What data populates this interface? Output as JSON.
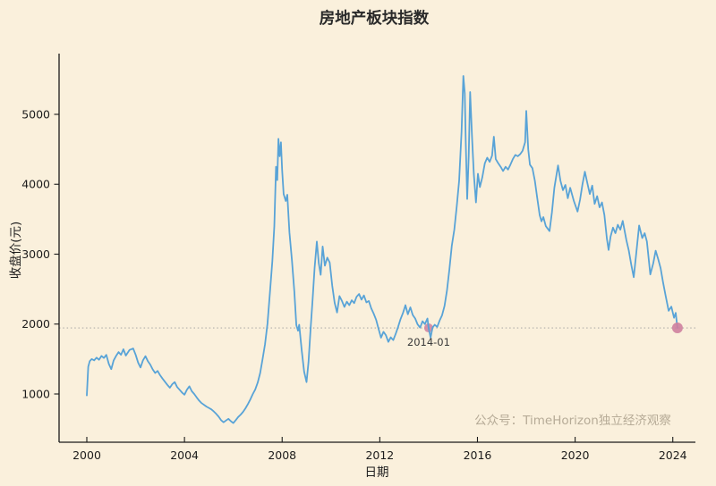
{
  "title": "房地产板块指数",
  "watermark": "公众号：TimeHorizon独立经济观察",
  "colors": {
    "background": "#faf0dc",
    "line": "#58a3d7",
    "marker": "#ce7f9f",
    "reference_line": "#9a9a9a",
    "spine": "#1a1a1a",
    "tick_text": "#1c1c1c",
    "watermark_text": "#b6ab97"
  },
  "chart_data": {
    "type": "line",
    "title": "房地产板块指数",
    "xlabel": "日期",
    "ylabel": "收盘价(元)",
    "x_ticks": [
      2000,
      2004,
      2008,
      2012,
      2016,
      2020,
      2024
    ],
    "y_ticks": [
      1000,
      2000,
      3000,
      4000,
      5000
    ],
    "xlim": [
      1998.9,
      2024.9
    ],
    "ylim": [
      310,
      5870
    ],
    "grid": false,
    "legend": null,
    "reference_line": {
      "y": 1945,
      "style": "dotted"
    },
    "annotations": [
      {
        "x": 2014.0,
        "y": 1945,
        "label": "2014-01",
        "dx": 0,
        "dy": 20
      }
    ],
    "markers": [
      {
        "x": 2014.0,
        "y": 1945,
        "r": 5,
        "layer": "below",
        "name": "marker-2014-01"
      },
      {
        "x": 2024.19,
        "y": 1945,
        "r": 6,
        "layer": "above",
        "name": "marker-latest"
      }
    ],
    "series": [
      {
        "name": "收盘价",
        "points": [
          [
            2000.0,
            980
          ],
          [
            2000.06,
            1390
          ],
          [
            2000.12,
            1470
          ],
          [
            2000.2,
            1500
          ],
          [
            2000.3,
            1480
          ],
          [
            2000.4,
            1520
          ],
          [
            2000.5,
            1490
          ],
          [
            2000.6,
            1545
          ],
          [
            2000.7,
            1515
          ],
          [
            2000.8,
            1560
          ],
          [
            2000.9,
            1430
          ],
          [
            2001.0,
            1355
          ],
          [
            2001.1,
            1480
          ],
          [
            2001.2,
            1545
          ],
          [
            2001.3,
            1600
          ],
          [
            2001.4,
            1560
          ],
          [
            2001.5,
            1640
          ],
          [
            2001.6,
            1550
          ],
          [
            2001.75,
            1630
          ],
          [
            2001.9,
            1650
          ],
          [
            2002.0,
            1560
          ],
          [
            2002.1,
            1450
          ],
          [
            2002.2,
            1380
          ],
          [
            2002.3,
            1480
          ],
          [
            2002.4,
            1540
          ],
          [
            2002.5,
            1470
          ],
          [
            2002.6,
            1420
          ],
          [
            2002.7,
            1350
          ],
          [
            2002.8,
            1300
          ],
          [
            2002.9,
            1330
          ],
          [
            2003.0,
            1270
          ],
          [
            2003.1,
            1220
          ],
          [
            2003.2,
            1175
          ],
          [
            2003.3,
            1130
          ],
          [
            2003.4,
            1090
          ],
          [
            2003.5,
            1140
          ],
          [
            2003.6,
            1170
          ],
          [
            2003.7,
            1100
          ],
          [
            2003.8,
            1060
          ],
          [
            2003.9,
            1020
          ],
          [
            2004.0,
            990
          ],
          [
            2004.1,
            1060
          ],
          [
            2004.2,
            1110
          ],
          [
            2004.3,
            1040
          ],
          [
            2004.4,
            1000
          ],
          [
            2004.5,
            950
          ],
          [
            2004.6,
            905
          ],
          [
            2004.7,
            870
          ],
          [
            2004.8,
            845
          ],
          [
            2004.9,
            820
          ],
          [
            2005.0,
            800
          ],
          [
            2005.1,
            780
          ],
          [
            2005.2,
            750
          ],
          [
            2005.3,
            715
          ],
          [
            2005.4,
            675
          ],
          [
            2005.5,
            625
          ],
          [
            2005.6,
            595
          ],
          [
            2005.7,
            620
          ],
          [
            2005.8,
            645
          ],
          [
            2005.9,
            610
          ],
          [
            2006.0,
            585
          ],
          [
            2006.1,
            625
          ],
          [
            2006.2,
            670
          ],
          [
            2006.3,
            705
          ],
          [
            2006.4,
            745
          ],
          [
            2006.5,
            795
          ],
          [
            2006.6,
            855
          ],
          [
            2006.7,
            925
          ],
          [
            2006.8,
            1000
          ],
          [
            2006.9,
            1065
          ],
          [
            2007.0,
            1165
          ],
          [
            2007.1,
            1300
          ],
          [
            2007.2,
            1500
          ],
          [
            2007.3,
            1710
          ],
          [
            2007.4,
            2010
          ],
          [
            2007.5,
            2450
          ],
          [
            2007.6,
            2900
          ],
          [
            2007.68,
            3400
          ],
          [
            2007.75,
            4250
          ],
          [
            2007.8,
            4060
          ],
          [
            2007.85,
            4650
          ],
          [
            2007.9,
            4400
          ],
          [
            2007.95,
            4600
          ],
          [
            2008.0,
            4210
          ],
          [
            2008.06,
            3860
          ],
          [
            2008.15,
            3760
          ],
          [
            2008.21,
            3850
          ],
          [
            2008.3,
            3310
          ],
          [
            2008.4,
            2910
          ],
          [
            2008.5,
            2460
          ],
          [
            2008.58,
            1985
          ],
          [
            2008.65,
            1905
          ],
          [
            2008.7,
            1990
          ],
          [
            2008.8,
            1625
          ],
          [
            2008.9,
            1320
          ],
          [
            2009.0,
            1170
          ],
          [
            2009.08,
            1455
          ],
          [
            2009.16,
            1905
          ],
          [
            2009.25,
            2355
          ],
          [
            2009.33,
            2800
          ],
          [
            2009.42,
            3180
          ],
          [
            2009.5,
            2870
          ],
          [
            2009.58,
            2705
          ],
          [
            2009.66,
            3110
          ],
          [
            2009.75,
            2835
          ],
          [
            2009.85,
            2950
          ],
          [
            2009.95,
            2880
          ],
          [
            2010.05,
            2550
          ],
          [
            2010.15,
            2305
          ],
          [
            2010.25,
            2165
          ],
          [
            2010.35,
            2400
          ],
          [
            2010.45,
            2330
          ],
          [
            2010.55,
            2245
          ],
          [
            2010.65,
            2320
          ],
          [
            2010.75,
            2270
          ],
          [
            2010.85,
            2340
          ],
          [
            2010.95,
            2300
          ],
          [
            2011.05,
            2390
          ],
          [
            2011.15,
            2430
          ],
          [
            2011.25,
            2350
          ],
          [
            2011.35,
            2410
          ],
          [
            2011.45,
            2310
          ],
          [
            2011.55,
            2330
          ],
          [
            2011.65,
            2225
          ],
          [
            2011.75,
            2150
          ],
          [
            2011.85,
            2060
          ],
          [
            2011.95,
            1930
          ],
          [
            2012.05,
            1805
          ],
          [
            2012.15,
            1890
          ],
          [
            2012.25,
            1840
          ],
          [
            2012.35,
            1745
          ],
          [
            2012.45,
            1810
          ],
          [
            2012.55,
            1770
          ],
          [
            2012.65,
            1860
          ],
          [
            2012.75,
            1960
          ],
          [
            2012.85,
            2070
          ],
          [
            2012.95,
            2160
          ],
          [
            2013.05,
            2270
          ],
          [
            2013.15,
            2140
          ],
          [
            2013.25,
            2240
          ],
          [
            2013.35,
            2130
          ],
          [
            2013.45,
            2080
          ],
          [
            2013.55,
            1995
          ],
          [
            2013.65,
            1950
          ],
          [
            2013.75,
            2040
          ],
          [
            2013.85,
            2000
          ],
          [
            2013.95,
            2080
          ],
          [
            2014.0,
            1945
          ],
          [
            2014.08,
            1805
          ],
          [
            2014.16,
            1950
          ],
          [
            2014.25,
            1990
          ],
          [
            2014.35,
            1960
          ],
          [
            2014.45,
            2050
          ],
          [
            2014.55,
            2125
          ],
          [
            2014.65,
            2260
          ],
          [
            2014.75,
            2480
          ],
          [
            2014.85,
            2780
          ],
          [
            2014.95,
            3120
          ],
          [
            2015.05,
            3350
          ],
          [
            2015.15,
            3680
          ],
          [
            2015.25,
            4050
          ],
          [
            2015.35,
            4750
          ],
          [
            2015.42,
            5550
          ],
          [
            2015.48,
            5300
          ],
          [
            2015.52,
            4600
          ],
          [
            2015.58,
            3790
          ],
          [
            2015.64,
            4400
          ],
          [
            2015.7,
            5320
          ],
          [
            2015.78,
            4650
          ],
          [
            2015.85,
            4150
          ],
          [
            2015.94,
            3740
          ],
          [
            2016.02,
            4150
          ],
          [
            2016.1,
            3960
          ],
          [
            2016.2,
            4100
          ],
          [
            2016.3,
            4300
          ],
          [
            2016.4,
            4380
          ],
          [
            2016.5,
            4320
          ],
          [
            2016.6,
            4410
          ],
          [
            2016.67,
            4680
          ],
          [
            2016.75,
            4360
          ],
          [
            2016.85,
            4300
          ],
          [
            2016.95,
            4250
          ],
          [
            2017.05,
            4190
          ],
          [
            2017.15,
            4250
          ],
          [
            2017.25,
            4210
          ],
          [
            2017.35,
            4280
          ],
          [
            2017.45,
            4360
          ],
          [
            2017.55,
            4420
          ],
          [
            2017.65,
            4400
          ],
          [
            2017.75,
            4430
          ],
          [
            2017.85,
            4480
          ],
          [
            2017.95,
            4600
          ],
          [
            2018.0,
            5050
          ],
          [
            2018.08,
            4500
          ],
          [
            2018.15,
            4280
          ],
          [
            2018.25,
            4230
          ],
          [
            2018.35,
            4050
          ],
          [
            2018.45,
            3800
          ],
          [
            2018.55,
            3560
          ],
          [
            2018.62,
            3470
          ],
          [
            2018.7,
            3530
          ],
          [
            2018.8,
            3400
          ],
          [
            2018.95,
            3330
          ],
          [
            2019.05,
            3600
          ],
          [
            2019.15,
            3950
          ],
          [
            2019.3,
            4270
          ],
          [
            2019.4,
            4050
          ],
          [
            2019.5,
            3915
          ],
          [
            2019.6,
            3990
          ],
          [
            2019.7,
            3800
          ],
          [
            2019.8,
            3950
          ],
          [
            2019.95,
            3760
          ],
          [
            2020.1,
            3610
          ],
          [
            2020.2,
            3780
          ],
          [
            2020.3,
            4000
          ],
          [
            2020.4,
            4180
          ],
          [
            2020.5,
            4020
          ],
          [
            2020.6,
            3860
          ],
          [
            2020.7,
            3980
          ],
          [
            2020.8,
            3720
          ],
          [
            2020.9,
            3830
          ],
          [
            2021.0,
            3670
          ],
          [
            2021.1,
            3740
          ],
          [
            2021.2,
            3560
          ],
          [
            2021.3,
            3220
          ],
          [
            2021.37,
            3060
          ],
          [
            2021.45,
            3250
          ],
          [
            2021.55,
            3380
          ],
          [
            2021.65,
            3300
          ],
          [
            2021.75,
            3420
          ],
          [
            2021.85,
            3350
          ],
          [
            2021.95,
            3475
          ],
          [
            2022.1,
            3200
          ],
          [
            2022.2,
            3050
          ],
          [
            2022.3,
            2850
          ],
          [
            2022.4,
            2670
          ],
          [
            2022.5,
            3000
          ],
          [
            2022.62,
            3410
          ],
          [
            2022.75,
            3230
          ],
          [
            2022.85,
            3300
          ],
          [
            2022.94,
            3180
          ],
          [
            2023.08,
            2710
          ],
          [
            2023.2,
            2870
          ],
          [
            2023.3,
            3050
          ],
          [
            2023.4,
            2930
          ],
          [
            2023.5,
            2800
          ],
          [
            2023.6,
            2600
          ],
          [
            2023.7,
            2420
          ],
          [
            2023.83,
            2190
          ],
          [
            2023.94,
            2250
          ],
          [
            2024.05,
            2090
          ],
          [
            2024.12,
            2160
          ],
          [
            2024.19,
            1945
          ]
        ]
      }
    ]
  }
}
